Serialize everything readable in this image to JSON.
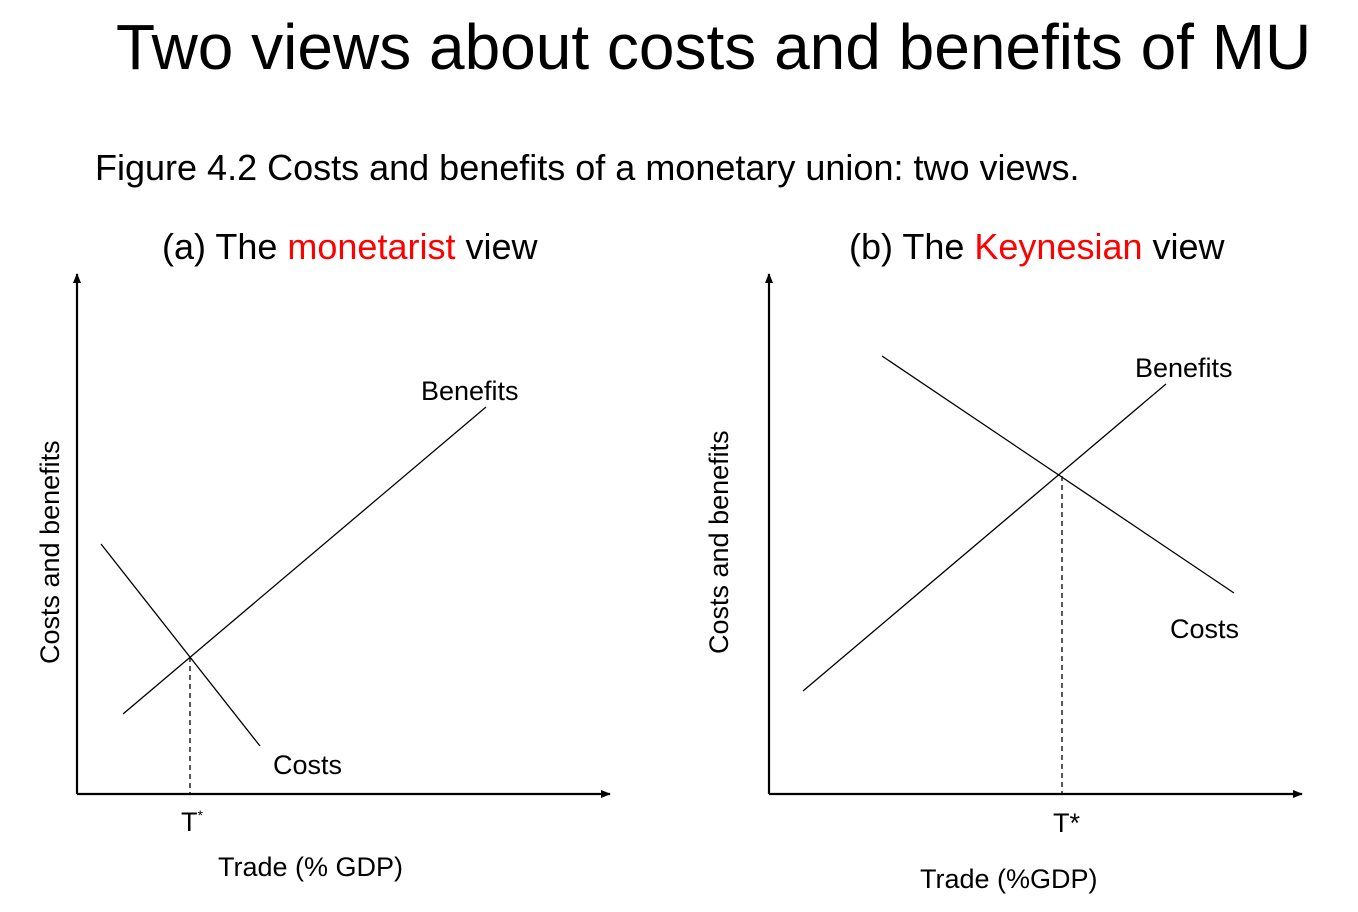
{
  "slide": {
    "title": "Two views about costs and benefits of MU",
    "caption": "Figure 4.2 Costs and benefits of a monetary union: two views."
  },
  "colors": {
    "accent": "#ff0000",
    "ink": "#000000"
  },
  "panels": [
    {
      "title_prefix": "(a) The ",
      "title_highlight": "monetarist",
      "title_suffix": " view",
      "y_axis_label": "Costs and benefits",
      "x_axis_label": "Trade (% GDP)",
      "threshold_label": "T",
      "threshold_superscript": "*",
      "benefits_label": "Benefits",
      "costs_label": "Costs"
    },
    {
      "title_prefix": "(b) The ",
      "title_highlight": "Keynesian",
      "title_suffix": " view",
      "y_axis_label": "Costs and benefits",
      "x_axis_label": "Trade (%GDP)",
      "threshold_label": "T*",
      "benefits_label": "Benefits",
      "costs_label": "Costs"
    }
  ]
}
